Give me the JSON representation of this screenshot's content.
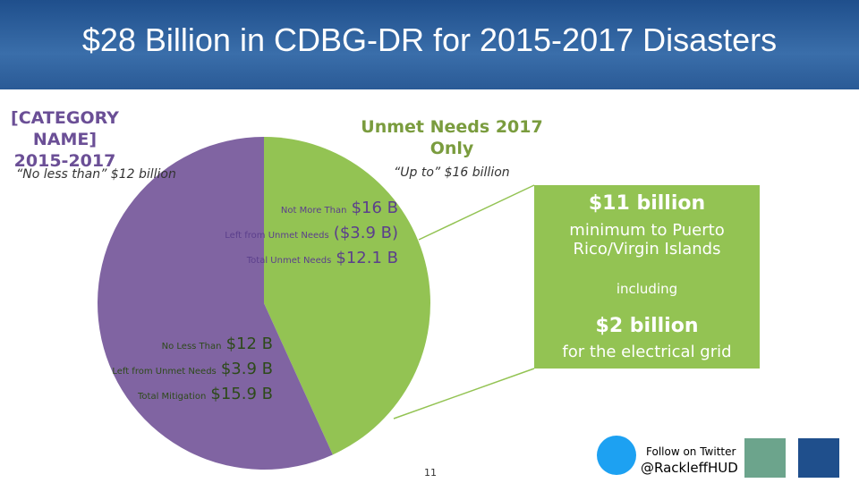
{
  "title": "$28 Billion in CDBG-DR for 2015-2017 Disasters",
  "chart_data": {
    "type": "pie",
    "categories": [
      "Unmet Needs 2017 Only",
      "[CATEGORY NAME] 2015-2017"
    ],
    "values": [
      12.1,
      15.9
    ],
    "colors": [
      "#93c353",
      "#8064a2"
    ],
    "annotations": [
      "“Up to” $16 billion",
      "“No less than” $12 billion"
    ]
  },
  "breakdowns": [
    {
      "rows": [
        {
          "label": "Not More Than",
          "amount": "$16 B"
        },
        {
          "label": "Left from Unmet Needs",
          "amount": "($3.9 B)"
        },
        {
          "label": "Total Unmet Needs",
          "amount": "$12.1 B"
        }
      ]
    },
    {
      "rows": [
        {
          "label": "No Less Than",
          "amount": "$12 B"
        },
        {
          "label": "Left from Unmet Needs",
          "amount": "$3.9 B"
        },
        {
          "label": "Total Mitigation",
          "amount": "$15.9 B"
        }
      ]
    }
  ],
  "callout": {
    "headline": "$11 billion",
    "text": "minimum to Puerto Rico/Virgin Islands",
    "joiner": "including",
    "headline2": "$2 billion",
    "text2": "for the electrical grid"
  },
  "footer": {
    "page": "11",
    "follow": "Follow on Twitter",
    "handle": "@RackleffHUD"
  }
}
